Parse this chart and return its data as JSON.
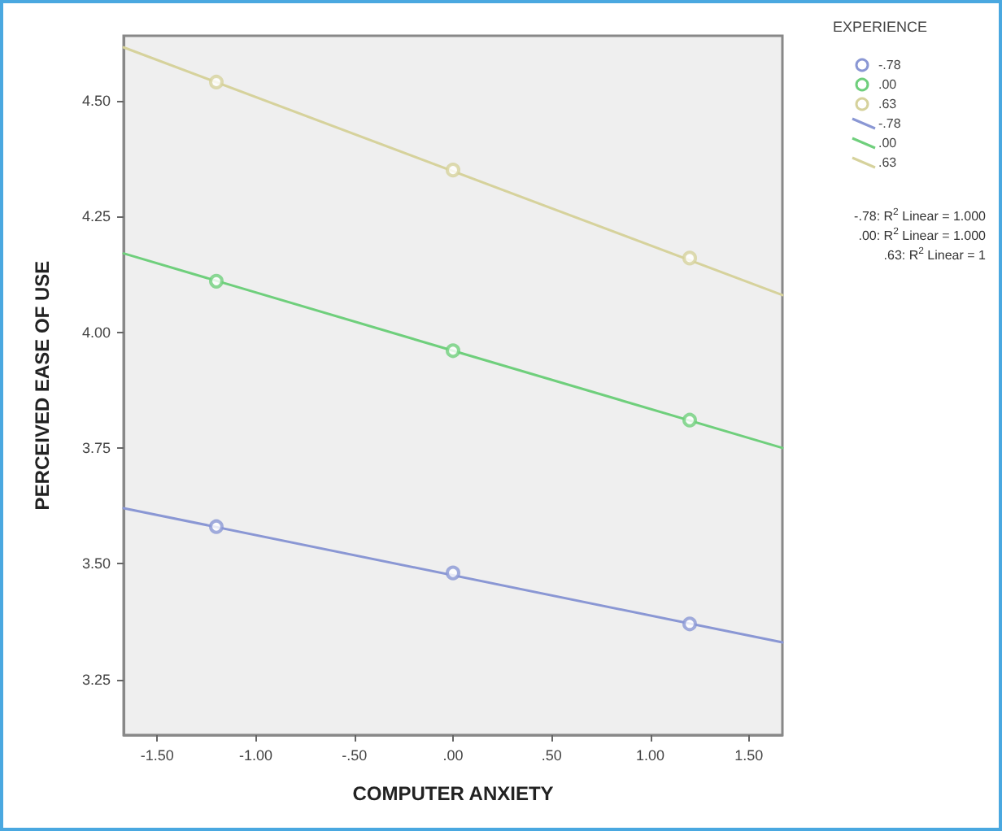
{
  "chart_data": {
    "type": "scatter",
    "xlabel": "COMPUTER ANXIETY",
    "ylabel": "PERCEIVED EASE OF USE",
    "legend_title": "EXPERIENCE",
    "xlim": [
      -1.67,
      1.67
    ],
    "ylim": [
      3.13,
      4.64
    ],
    "xticks": [
      {
        "value": -1.5,
        "label": "-1.50"
      },
      {
        "value": -1,
        "label": "-1.00"
      },
      {
        "value": -0.5,
        "label": "-.50"
      },
      {
        "value": 0,
        "label": ".00"
      },
      {
        "value": 0.5,
        "label": ".50"
      },
      {
        "value": 1,
        "label": "1.00"
      },
      {
        "value": 1.5,
        "label": "1.50"
      }
    ],
    "yticks": [
      {
        "value": 3.25,
        "label": "3.25"
      },
      {
        "value": 3.5,
        "label": "3.50"
      },
      {
        "value": 3.75,
        "label": "3.75"
      },
      {
        "value": 4,
        "label": "4.00"
      },
      {
        "value": 4.25,
        "label": "4.25"
      },
      {
        "value": 4.5,
        "label": "4.50"
      }
    ],
    "grid": false,
    "legend": "top right",
    "marker": "circle",
    "series": [
      {
        "name": "-.78",
        "color": "#8a97d4",
        "x": [
          -1.2,
          0,
          1.2
        ],
        "values": [
          3.58,
          3.48,
          3.37
        ]
      },
      {
        "name": ".00",
        "color": "#6fcf7c",
        "x": [
          -1.2,
          0,
          1.2
        ],
        "values": [
          4.11,
          3.96,
          3.81
        ]
      },
      {
        "name": ".63",
        "color": "#d6d29c",
        "x": [
          -1.2,
          0,
          1.2
        ],
        "values": [
          4.54,
          4.35,
          4.16
        ]
      },
      {
        "name": "-.78",
        "type": "line",
        "marker": "none",
        "color": "#8a97d4",
        "x": [
          -1.67,
          1.67
        ],
        "values": [
          3.62,
          3.33
        ]
      },
      {
        "name": ".00",
        "type": "line",
        "marker": "none",
        "color": "#6fcf7c",
        "x": [
          -1.67,
          1.67
        ],
        "values": [
          4.17,
          3.75
        ]
      },
      {
        "name": ".63",
        "type": "line",
        "marker": "none",
        "color": "#d6d29c",
        "x": [
          -1.67,
          1.67
        ],
        "values": [
          4.615,
          4.08
        ]
      }
    ],
    "annotations": [
      "-.78: R$^{2}$ Linear = 1.000",
      ".00: R$^{2}$ Linear = 1.000",
      ".63: R$^{2}$ Linear = 1"
    ]
  }
}
